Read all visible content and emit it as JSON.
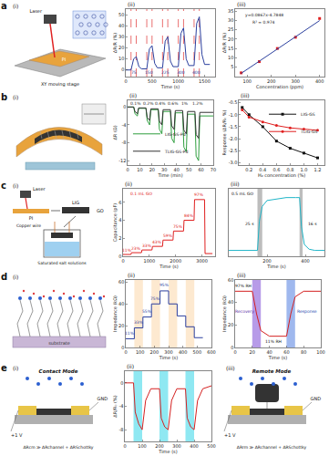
{
  "figure": {
    "panel_labels": [
      "a",
      "b",
      "c",
      "d",
      "e"
    ]
  },
  "diagrams": [
    {
      "title": "(i)",
      "labels": [
        "Laser",
        "PI",
        "XY moving stage"
      ]
    },
    {
      "title": "(i)",
      "labels": []
    },
    {
      "title": "(i)",
      "labels": [
        "Laser",
        "LIG",
        "PI",
        "GO",
        "Copper wire",
        "Saturated salt solutions"
      ]
    },
    {
      "title": "(i)",
      "labels": [
        "substrate"
      ]
    },
    {
      "title": "(i)",
      "labels": [
        "Contact Mode",
        "GND",
        "+1 V",
        "ΔRcm ≫ ΔRchannel + ΔRSchottky"
      ]
    },
    {
      "title": "(iii)",
      "labels": [
        "Remote Mode",
        "GND",
        "+1 V",
        "ΔRrm ≫ ΔRchannel + ΔRSchottky"
      ]
    }
  ],
  "chart_data": [
    {
      "type": "line",
      "title": "(ii)",
      "x_label": "Time (s)",
      "y_label": "ΔR/R (%)",
      "xlim": [
        0,
        1700
      ],
      "xticks": [
        0,
        500,
        1000,
        1500
      ],
      "ylim": [
        -6,
        55
      ],
      "yticks": [
        0,
        10,
        20,
        30,
        40,
        50
      ],
      "series": [
        {
          "color": "#2b3f9e",
          "line_style": "solid",
          "x": [
            0,
            100,
            150,
            200,
            250,
            300,
            400,
            450,
            500,
            550,
            600,
            700,
            750,
            800,
            850,
            900,
            1000,
            1050,
            1100,
            1150,
            1200,
            1300,
            1350,
            1400,
            1450,
            1500,
            1600
          ],
          "values": [
            0,
            0,
            10,
            12,
            3,
            1,
            1,
            19,
            22,
            6,
            2,
            2,
            26,
            30,
            8,
            3,
            3,
            33,
            38,
            10,
            4,
            4,
            42,
            48,
            14,
            5,
            5
          ]
        }
      ],
      "vlines": {
        "x": [
          100,
          200,
          400,
          500,
          700,
          800,
          1000,
          1100,
          1300,
          1400
        ],
        "color": "#e03030",
        "line_style": "dash"
      },
      "annotations": [
        {
          "text": "75",
          "x": 150,
          "y": -2,
          "color": "#2b3f9e"
        },
        {
          "text": "150",
          "x": 450,
          "y": -2,
          "color": "#2b3f9e"
        },
        {
          "text": "225",
          "x": 750,
          "y": -2,
          "color": "#2b3f9e"
        },
        {
          "text": "300",
          "x": 1050,
          "y": -2,
          "color": "#2b3f9e"
        },
        {
          "text": "400",
          "x": 1350,
          "y": -2,
          "color": "#2b3f9e"
        }
      ]
    },
    {
      "type": "scatter",
      "title": "(iii)",
      "x_label": "Concentration (ppm)",
      "y_label": "ΔR/R (%)",
      "xlim": [
        50,
        420
      ],
      "xticks": [
        100,
        200,
        300,
        400
      ],
      "ylim": [
        0,
        36
      ],
      "yticks": [
        5,
        10,
        15,
        20,
        25,
        30,
        35
      ],
      "series": [
        {
          "color": "#e02020",
          "marker": "square",
          "line_style": "none",
          "x": [
            75,
            150,
            225,
            300,
            400
          ],
          "values": [
            2,
            8,
            15,
            21,
            31
          ]
        },
        {
          "color": "#2b3f9e",
          "line_style": "solid",
          "x": [
            75,
            400
          ],
          "values": [
            1.72,
            29.89
          ]
        }
      ],
      "annotations": [
        {
          "text": "y=0.0867x-4.7848",
          "x": 170,
          "y": 33,
          "color": "#222222"
        },
        {
          "text": "R² = 0.974",
          "x": 170,
          "y": 29,
          "color": "#222222"
        }
      ]
    },
    {
      "type": "line",
      "title": "(ii)",
      "x_label": "Time (min)",
      "y_label": "ΔR (Ω)",
      "xlim": [
        0,
        70
      ],
      "xticks": [
        0,
        10,
        20,
        30,
        40,
        50,
        60,
        70
      ],
      "ylim": [
        -13,
        1.5
      ],
      "yticks": [
        -12,
        -8,
        -4,
        0
      ],
      "legend": "lower left",
      "series": [
        {
          "name": "LIG-GS-Pd",
          "color": "#2e9e3e",
          "line_style": "solid",
          "x": [
            0,
            5,
            6,
            8,
            9,
            15,
            16,
            18,
            19,
            25,
            26,
            28,
            29,
            35,
            36,
            38,
            39,
            45,
            46,
            48,
            49,
            55,
            56,
            58,
            59,
            65,
            70
          ],
          "values": [
            0,
            0,
            -1.5,
            -2,
            -0.3,
            -0.3,
            -3,
            -4,
            -0.6,
            -0.6,
            -5,
            -6,
            -1,
            -1,
            -7,
            -8,
            -1.3,
            -1.3,
            -9,
            -10,
            -1.6,
            -1.6,
            -11,
            -12,
            -2,
            -2,
            -2
          ]
        },
        {
          "name": "TLIG-GS-Pd",
          "color": "#333333",
          "line_style": "solid",
          "x": [
            0,
            5,
            6,
            8,
            9,
            15,
            16,
            18,
            19,
            25,
            26,
            28,
            29,
            35,
            36,
            38,
            39,
            45,
            46,
            48,
            49,
            55,
            56,
            58,
            59,
            65,
            70
          ],
          "values": [
            0,
            0,
            -1,
            -1.5,
            -0.2,
            -0.2,
            -2.3,
            -3,
            -0.4,
            -0.4,
            -3.2,
            -4,
            -0.6,
            -0.6,
            -4.2,
            -5,
            -0.8,
            -0.8,
            -5.2,
            -6,
            -1,
            -1,
            -6.2,
            -7,
            -1.2,
            -1.2,
            -1.2
          ]
        }
      ],
      "annotations": [
        {
          "text": "0.1%",
          "x": 7,
          "y": 0.8,
          "color": "#222222"
        },
        {
          "text": "0.2%",
          "x": 17,
          "y": 0.8,
          "color": "#222222"
        },
        {
          "text": "0.4%",
          "x": 27,
          "y": 0.8,
          "color": "#222222"
        },
        {
          "text": "0.6%",
          "x": 37,
          "y": 0.8,
          "color": "#222222"
        },
        {
          "text": "1%",
          "x": 47,
          "y": 0.8,
          "color": "#222222"
        },
        {
          "text": "1.2%",
          "x": 57,
          "y": 0.8,
          "color": "#222222"
        }
      ]
    },
    {
      "type": "line",
      "title": "(iii)",
      "x_label": "H₂ concentration (%)",
      "y_label": "Response (ΔR/R₀ %)",
      "xlim": [
        0.05,
        1.3
      ],
      "xticks": [
        0.2,
        0.4,
        0.6,
        0.8,
        {
          "value": 1,
          "label": "1.0"
        },
        1.2
      ],
      "ylim": [
        -3.1,
        -0.4
      ],
      "yticks": [
        {
          "value": -3,
          "label": "-3.0"
        },
        -2.5,
        {
          "value": -2,
          "label": "-2.0"
        },
        -1.5,
        {
          "value": -1,
          "label": "-1.0"
        },
        -0.5
      ],
      "legend": "upper right",
      "series": [
        {
          "name": "LIG-GS",
          "color": "#111111",
          "marker": "square",
          "line_style": "solid",
          "x": [
            0.1,
            0.2,
            0.4,
            0.6,
            0.8,
            1.0,
            1.2
          ],
          "values": [
            -0.7,
            -1.0,
            -1.5,
            -2.1,
            -2.4,
            -2.6,
            -2.8
          ]
        },
        {
          "name": "TLIG-GS",
          "color": "#e02020",
          "marker": "circle",
          "line_style": "solid",
          "x": [
            0.1,
            0.2,
            0.4,
            0.6,
            0.8,
            1.0,
            1.2
          ],
          "values": [
            -0.8,
            -1.1,
            -1.3,
            -1.45,
            -1.55,
            -1.6,
            -1.65
          ]
        }
      ]
    },
    {
      "type": "line",
      "title": "(ii)",
      "x_label": "Time (s)",
      "y_label": "Capacitance (pF)",
      "xlim": [
        0,
        3500
      ],
      "xticks": [
        0,
        1000,
        2000,
        3000
      ],
      "ylim": [
        0,
        7.5
      ],
      "yticks": [
        0,
        2,
        4,
        6
      ],
      "series": [
        {
          "color": "#e02020",
          "line_style": "solid",
          "x": [
            0,
            300,
            320,
            700,
            720,
            1100,
            1120,
            1500,
            1520,
            1900,
            1920,
            2300,
            2320,
            2700,
            2720,
            3100,
            3120,
            3400
          ],
          "values": [
            0.2,
            0.2,
            0.4,
            0.4,
            0.7,
            0.7,
            1.1,
            1.1,
            1.8,
            1.8,
            2.8,
            2.8,
            4.0,
            4.0,
            6.3,
            6.3,
            0.3,
            0.3
          ]
        }
      ],
      "annotations": [
        {
          "text": "0.1 mL GO",
          "x": 700,
          "y": 6.9,
          "color": "#e02020"
        },
        {
          "text": "11%",
          "x": 150,
          "y": 0.7,
          "color": "#e02020"
        },
        {
          "text": "23%",
          "x": 510,
          "y": 0.9,
          "color": "#e02020"
        },
        {
          "text": "33%",
          "x": 910,
          "y": 1.2,
          "color": "#e02020"
        },
        {
          "text": "43%",
          "x": 1310,
          "y": 1.6,
          "color": "#e02020"
        },
        {
          "text": "59%",
          "x": 1710,
          "y": 2.3,
          "color": "#e02020"
        },
        {
          "text": "75%",
          "x": 2110,
          "y": 3.3,
          "color": "#e02020"
        },
        {
          "text": "84%",
          "x": 2510,
          "y": 4.5,
          "color": "#e02020"
        },
        {
          "text": "97%",
          "x": 2910,
          "y": 6.8,
          "color": "#e02020"
        }
      ]
    },
    {
      "type": "line",
      "title": "(iii)",
      "x_label": "Time (s)",
      "xlim": [
        0,
        500
      ],
      "xticks": [
        200,
        400
      ],
      "ylim": [
        0,
        1.15
      ],
      "yticks": [],
      "tick_labels": "x",
      "series": [
        {
          "color": "#1fb5c8",
          "line_style": "solid",
          "x": [
            0,
            100,
            150,
            160,
            175,
            200,
            250,
            300,
            350,
            370,
            380,
            395,
            420,
            450,
            500
          ],
          "values": [
            0.1,
            0.1,
            0.1,
            0.6,
            0.85,
            0.95,
            0.98,
            1.0,
            1.0,
            1.0,
            0.5,
            0.2,
            0.12,
            0.1,
            0.1
          ]
        }
      ],
      "bands": [
        {
          "x0": 150,
          "x1": 175,
          "color": "#bdbdbd"
        },
        {
          "x0": 370,
          "x1": 386,
          "color": "#bdbdbd"
        }
      ],
      "annotations": [
        {
          "text": "0.5 mL GO",
          "x": 70,
          "y": 1.07,
          "color": "#111111"
        },
        {
          "text": "25 s",
          "x": 110,
          "y": 0.55,
          "color": "#111111"
        },
        {
          "text": "16 s",
          "x": 440,
          "y": 0.55,
          "color": "#111111"
        }
      ]
    },
    {
      "type": "line",
      "title": "(ii)",
      "x_label": "Time (s)",
      "y_label": "Impedance (kΩ)",
      "xlim": [
        0,
        600
      ],
      "xticks": [
        0,
        100,
        200,
        300,
        400,
        500,
        600
      ],
      "ylim": [
        0,
        62
      ],
      "yticks": [
        0,
        20,
        40,
        60
      ],
      "series": [
        {
          "color": "#2b3f9e",
          "line_style": "solid",
          "x": [
            0,
            60,
            60,
            120,
            120,
            180,
            180,
            240,
            240,
            300,
            300,
            360,
            360,
            420,
            420,
            480,
            480,
            540
          ],
          "values": [
            8,
            8,
            18,
            18,
            28,
            28,
            40,
            40,
            52,
            52,
            40,
            40,
            29,
            29,
            19,
            19,
            9,
            9
          ]
        }
      ],
      "bands": [
        {
          "x0": 60,
          "x1": 120,
          "color": "#fde9d0"
        },
        {
          "x0": 180,
          "x1": 240,
          "color": "#fde9d0"
        },
        {
          "x0": 300,
          "x1": 360,
          "color": "#fde9d0"
        },
        {
          "x0": 420,
          "x1": 480,
          "color": "#fde9d0"
        }
      ],
      "annotations": [
        {
          "text": "11%",
          "x": 30,
          "y": 13,
          "color": "#2b3f9e"
        },
        {
          "text": "33%",
          "x": 90,
          "y": 23,
          "color": "#2b3f9e"
        },
        {
          "text": "55%",
          "x": 150,
          "y": 33,
          "color": "#2b3f9e"
        },
        {
          "text": "75%",
          "x": 210,
          "y": 45,
          "color": "#2b3f9e"
        },
        {
          "text": "95%",
          "x": 270,
          "y": 57,
          "color": "#2b3f9e"
        }
      ]
    },
    {
      "type": "line",
      "title": "(iii)",
      "x_label": "Time (s)",
      "y_label": "Impedance (kΩ)",
      "xlim": [
        0,
        100
      ],
      "xticks": [
        0,
        20,
        40,
        60,
        80,
        100
      ],
      "ylim": [
        0,
        60
      ],
      "yticks": [
        0,
        20,
        40,
        60
      ],
      "series": [
        {
          "color": "#d42020",
          "line_style": "solid",
          "x": [
            0,
            20,
            25,
            30,
            40,
            50,
            60,
            65,
            70,
            80,
            90,
            100
          ],
          "values": [
            50,
            50,
            30,
            15,
            10,
            10,
            10,
            30,
            45,
            50,
            50,
            50
          ]
        }
      ],
      "bands": [
        {
          "x0": 20,
          "x1": 30,
          "color": "#b79be8"
        },
        {
          "x0": 60,
          "x1": 70,
          "color": "#9fb8ee"
        }
      ],
      "annotations": [
        {
          "text": "97% RH",
          "x": 10,
          "y": 55,
          "color": "#111111"
        },
        {
          "text": "11% RH",
          "x": 45,
          "y": 5,
          "color": "#111111"
        },
        {
          "text": "Recovery",
          "x": 11,
          "y": 32,
          "color": "#5a2ea6"
        },
        {
          "text": "Response",
          "x": 84,
          "y": 32,
          "color": "#1f4bb0"
        }
      ]
    },
    {
      "type": "line",
      "title": "(ii)",
      "x_label": "Time (s)",
      "y_label": "ΔR/R₀ (%)",
      "xlim": [
        0,
        500
      ],
      "xticks": [
        0,
        100,
        200,
        300,
        400,
        500
      ],
      "ylim": [
        -10,
        2
      ],
      "yticks": [
        -8,
        -4,
        0
      ],
      "series": [
        {
          "color": "#d42020",
          "line_style": "solid",
          "x": [
            0,
            50,
            60,
            80,
            100,
            120,
            150,
            200,
            210,
            230,
            250,
            270,
            300,
            350,
            360,
            380,
            400,
            420,
            450,
            500
          ],
          "values": [
            0,
            0,
            -5,
            -7,
            -8,
            -3,
            -1,
            -1,
            -6,
            -7.5,
            -8,
            -3,
            -1,
            -1,
            -6,
            -7.5,
            -8,
            -3,
            -1,
            -0.5
          ]
        }
      ],
      "bands": [
        {
          "x0": 50,
          "x1": 100,
          "color": "#8fe8f2"
        },
        {
          "x0": 200,
          "x1": 250,
          "color": "#8fe8f2"
        },
        {
          "x0": 350,
          "x1": 400,
          "color": "#8fe8f2"
        }
      ]
    }
  ]
}
